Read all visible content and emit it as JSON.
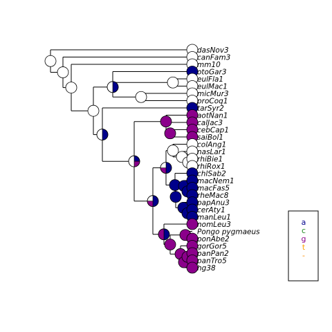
{
  "tree": {
    "tips": [
      {
        "id": "dasNov3",
        "label": "dasNov3",
        "state": "unknown"
      },
      {
        "id": "canFam3",
        "label": "canFam3",
        "state": "unknown"
      },
      {
        "id": "mm10",
        "label": "mm10",
        "state": "unknown"
      },
      {
        "id": "otoGar3",
        "label": "otoGar3",
        "state": "a"
      },
      {
        "id": "eulFla1",
        "label": "eulFla1",
        "state": "unknown"
      },
      {
        "id": "eulMac1",
        "label": "eulMac1",
        "state": "unknown"
      },
      {
        "id": "micMur3",
        "label": "micMur3",
        "state": "unknown"
      },
      {
        "id": "proCoq1",
        "label": "proCoq1",
        "state": "unknown"
      },
      {
        "id": "tarSyr2",
        "label": "tarSyr2",
        "state": "a"
      },
      {
        "id": "aotNan1",
        "label": "aotNan1",
        "state": "g"
      },
      {
        "id": "calJac3",
        "label": "calJac3",
        "state": "g"
      },
      {
        "id": "cebCap1",
        "label": "cebCap1",
        "state": "g"
      },
      {
        "id": "saiBol1",
        "label": "saiBol1",
        "state": "g"
      },
      {
        "id": "colAng1",
        "label": "colAng1",
        "state": "unknown"
      },
      {
        "id": "nasLar1",
        "label": "nasLar1",
        "state": "unknown"
      },
      {
        "id": "rhiBie1",
        "label": "rhiBie1",
        "state": "unknown"
      },
      {
        "id": "rhiRox1",
        "label": "rhiRox1",
        "state": "unknown"
      },
      {
        "id": "chlSab2",
        "label": "chlSab2",
        "state": "a"
      },
      {
        "id": "macNem1",
        "label": "macNem1",
        "state": "a"
      },
      {
        "id": "macFas5",
        "label": "macFas5",
        "state": "a"
      },
      {
        "id": "rheMac8",
        "label": "rheMac8",
        "state": "a"
      },
      {
        "id": "papAnu3",
        "label": "papAnu3",
        "state": "a"
      },
      {
        "id": "cerAty1",
        "label": "cerAty1",
        "state": "a"
      },
      {
        "id": "manLeu1",
        "label": "manLeu1",
        "state": "a"
      },
      {
        "id": "nomLeu3",
        "label": "nomLeu3",
        "state": "g"
      },
      {
        "id": "ponPyg",
        "label": "Pongo pygmaeus",
        "state": "unknown"
      },
      {
        "id": "ponAbe2",
        "label": "ponAbe2",
        "state": "g"
      },
      {
        "id": "gorGor5",
        "label": "gorGor5",
        "state": "g"
      },
      {
        "id": "panPan2",
        "label": "panPan2",
        "state": "g"
      },
      {
        "id": "panTro5",
        "label": "panTro5",
        "state": "g"
      },
      {
        "id": "hg38",
        "label": "hg38",
        "state": "g"
      }
    ],
    "internal_nodes": [
      {
        "id": "root",
        "composition": {
          "unknown": 1.0
        }
      },
      {
        "id": "n_canfam_plus",
        "composition": {
          "unknown": 1.0
        }
      },
      {
        "id": "n_mm10_plus",
        "composition": {
          "unknown": 1.0
        }
      },
      {
        "id": "n_primates",
        "composition": {
          "unknown": 1.0
        }
      },
      {
        "id": "n_strepsirrhini",
        "composition": {
          "a": 0.5,
          "unknown": 0.5
        }
      },
      {
        "id": "n_otogar_lemurs",
        "composition": {
          "unknown": 1.0
        }
      },
      {
        "id": "n_eulemur",
        "composition": {
          "unknown": 1.0
        }
      },
      {
        "id": "n_cheirogaleid",
        "composition": {
          "unknown": 1.0
        }
      },
      {
        "id": "n_haplorhini",
        "composition": {
          "a": 0.5,
          "unknown": 0.5
        }
      },
      {
        "id": "n_anthropoidea",
        "composition": {
          "a": 0.25,
          "g": 0.25,
          "unknown": 0.5
        }
      },
      {
        "id": "n_platyrrhini",
        "composition": {
          "g": 1.0
        }
      },
      {
        "id": "n_cebidae",
        "composition": {
          "g": 1.0
        }
      },
      {
        "id": "n_cebus_saimiri",
        "composition": {
          "g": 1.0
        }
      },
      {
        "id": "n_catarrhini",
        "composition": {
          "a": 0.5,
          "g": 0.25,
          "unknown": 0.25
        }
      },
      {
        "id": "n_cercopithecidae",
        "composition": {
          "a": 0.5,
          "g": 0.25,
          "unknown": 0.25
        }
      },
      {
        "id": "n_colobinae",
        "composition": {
          "unknown": 1.0
        }
      },
      {
        "id": "n_nasalis_rhino",
        "composition": {
          "unknown": 1.0
        }
      },
      {
        "id": "n_rhinopithecus",
        "composition": {
          "unknown": 1.0
        }
      },
      {
        "id": "n_cercopithecinae",
        "composition": {
          "a": 1.0
        }
      },
      {
        "id": "n_macaca_papio",
        "composition": {
          "a": 1.0
        }
      },
      {
        "id": "n_macaca",
        "composition": {
          "a": 1.0
        }
      },
      {
        "id": "n_macaca_inner",
        "composition": {
          "a": 1.0
        }
      },
      {
        "id": "n_papionini",
        "composition": {
          "a": 1.0
        }
      },
      {
        "id": "n_cerco_mandrill",
        "composition": {
          "a": 1.0
        }
      },
      {
        "id": "n_hominoidea",
        "composition": {
          "a": 0.5,
          "g": 0.5
        }
      },
      {
        "id": "n_hominidae",
        "composition": {
          "g": 1.0
        }
      },
      {
        "id": "n_pongo",
        "composition": {
          "g": 1.0
        }
      },
      {
        "id": "n_homininae",
        "composition": {
          "g": 1.0
        }
      },
      {
        "id": "n_hominini",
        "composition": {
          "g": 1.0
        }
      },
      {
        "id": "n_pan",
        "composition": {
          "g": 1.0
        }
      }
    ]
  },
  "legend": {
    "entries": [
      {
        "key": "a",
        "label": "a",
        "color": "#00008B"
      },
      {
        "key": "c",
        "label": "c",
        "color": "#228B22"
      },
      {
        "key": "g",
        "label": "g",
        "color": "#8B008B"
      },
      {
        "key": "t",
        "label": "t",
        "color": "#FFA500"
      },
      {
        "key": "unknown",
        "label": "-",
        "color": "#FFFFFF"
      }
    ],
    "placement": "right"
  },
  "colors": {
    "a": "#00008B",
    "c": "#228B22",
    "g": "#8B008B",
    "t": "#FFA500",
    "unknown": "#FFFFFF",
    "unknown_legend_text": "#FF8C00",
    "branch": "#000000"
  }
}
